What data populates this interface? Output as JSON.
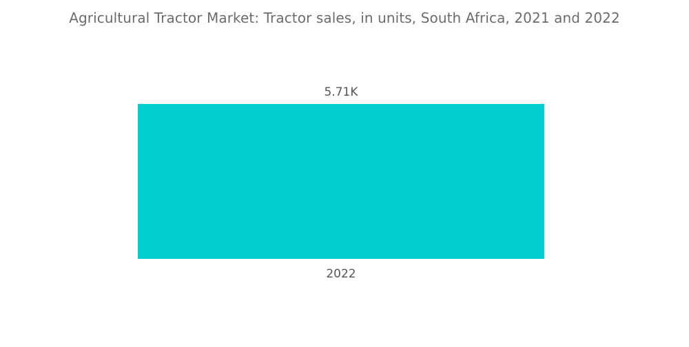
{
  "chart_data": {
    "type": "bar",
    "title": "Agricultural Tractor Market: Tractor sales, in units, South Africa, 2021 and 2022",
    "categories": [
      "2022"
    ],
    "values": [
      5710
    ],
    "data_labels": [
      "5.71K"
    ],
    "xlabel": "",
    "ylabel": "",
    "ylim": [
      0,
      5710
    ],
    "grid": false,
    "legend": "none",
    "bar_color": "#00CED1"
  }
}
